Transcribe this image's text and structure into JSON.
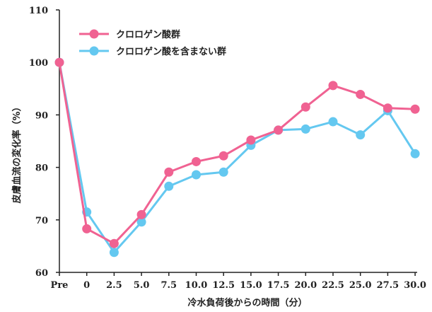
{
  "chart_data": {
    "type": "line",
    "title": "",
    "xlabel": "冷水負荷後からの時間（分）",
    "ylabel": "皮膚血流の変化率（%）",
    "categories": [
      "Pre",
      "0",
      "2.5",
      "5.0",
      "7.5",
      "10.0",
      "12.5",
      "15.0",
      "17.5",
      "20.0",
      "22.5",
      "25.0",
      "27.5",
      "30.0"
    ],
    "ylim": [
      60,
      110
    ],
    "yticks": [
      "60",
      "70",
      "80",
      "90",
      "100",
      "110"
    ],
    "grid": false,
    "legend_position": "top-left",
    "series": [
      {
        "name": "クロロゲン酸群",
        "color": "#f06292",
        "values": [
          100,
          68.3,
          65.5,
          71.0,
          79.1,
          81.1,
          82.2,
          85.2,
          87.1,
          91.5,
          95.6,
          93.9,
          91.3,
          91.1
        ]
      },
      {
        "name": "クロロゲン酸を含まない群",
        "color": "#64c8f0",
        "values": [
          100,
          71.5,
          63.8,
          69.6,
          76.4,
          78.6,
          79.1,
          84.2,
          87.1,
          87.3,
          88.7,
          86.2,
          90.8,
          82.6
        ]
      }
    ]
  }
}
